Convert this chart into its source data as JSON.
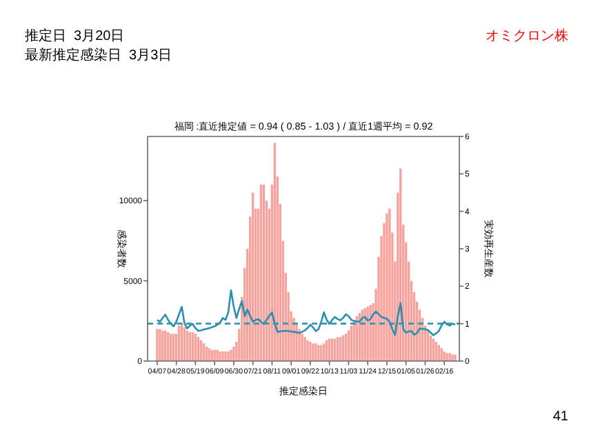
{
  "chart_data": {
    "type": "bar",
    "title": "福岡 :直近推定値 = 0.94 ( 0.85 - 1.03 ) / 直近1週平均 = 0.92",
    "xlabel": "推定感染日",
    "ylabel": "感染者数",
    "y2label": "実効再生産数",
    "annotations": [
      "推定日  3月20日",
      "最新推定感染日  3月3日",
      "オミクロン株",
      "41"
    ],
    "categories": [
      "04/07",
      null,
      null,
      null,
      null,
      null,
      null,
      "04/28",
      null,
      null,
      null,
      null,
      null,
      null,
      "05/19",
      null,
      null,
      null,
      null,
      null,
      null,
      "06/09",
      null,
      null,
      null,
      null,
      null,
      null,
      "06/30",
      null,
      null,
      null,
      null,
      null,
      null,
      "07/21",
      null,
      null,
      null,
      null,
      null,
      null,
      "08/11",
      null,
      null,
      null,
      null,
      null,
      null,
      "09/01",
      null,
      null,
      null,
      null,
      null,
      null,
      "09/22",
      null,
      null,
      null,
      null,
      null,
      null,
      "10/13",
      null,
      null,
      null,
      null,
      null,
      null,
      "11/03",
      null,
      null,
      null,
      null,
      null,
      null,
      "11/24",
      null,
      null,
      null,
      null,
      null,
      null,
      "12/15",
      null,
      null,
      null,
      null,
      null,
      null,
      "01/05",
      null,
      null,
      null,
      null,
      null,
      null,
      "01/26",
      null,
      null,
      null,
      null,
      null,
      null,
      "02/16",
      null,
      null,
      null,
      null
    ],
    "ylim": [
      0,
      14000
    ],
    "yticks": [
      0,
      5000,
      10000
    ],
    "y2lim": [
      0,
      6
    ],
    "y2ticks": [
      0,
      1,
      2,
      3,
      4,
      5,
      6
    ],
    "ref_lines": [
      {
        "axis": "y2",
        "value": 1,
        "color": "#2a9bb5",
        "line_style": "dashed"
      }
    ],
    "series": [
      {
        "color": "#f8a29d",
        "values": [
          2000,
          2000,
          1900,
          1900,
          1800,
          1700,
          1700,
          1700,
          2200,
          2400,
          2100,
          1900,
          1800,
          1800,
          1700,
          1500,
          1300,
          1100,
          900,
          800,
          700,
          700,
          700,
          600,
          600,
          600,
          600,
          700,
          900,
          1200,
          2000,
          4000,
          5800,
          7000,
          9000,
          10500,
          9500,
          9500,
          11000,
          11000,
          10000,
          9500,
          11000,
          13600,
          11500,
          9800,
          7500,
          5500,
          4300,
          3100,
          2700,
          2300,
          2000,
          1700,
          1500,
          1300,
          1200,
          1100,
          1100,
          1000,
          1000,
          1100,
          1300,
          1400,
          1400,
          1400,
          1500,
          1500,
          1600,
          1700,
          1900,
          2200,
          2500,
          2800,
          3000,
          3200,
          3300,
          3400,
          3500,
          3600,
          4500,
          6500,
          7800,
          8600,
          9200,
          9500,
          8000,
          6200,
          10500,
          12000,
          8500,
          7400,
          6200,
          5000,
          4300,
          3700,
          3200,
          2700,
          2200,
          1900,
          1600,
          1400,
          1200,
          1000,
          800,
          600,
          500,
          500,
          400,
          400
        ]
      },
      {
        "type": "line",
        "axis": "y2",
        "color": "#2b8db0",
        "values": [
          1.1,
          1.05,
          1.15,
          1.24,
          1.1,
          1.0,
          0.93,
          1.05,
          1.25,
          1.45,
          1.0,
          0.87,
          0.95,
          0.99,
          0.88,
          0.81,
          0.82,
          0.84,
          0.86,
          0.88,
          0.9,
          0.93,
          0.97,
          1.03,
          1.15,
          1.1,
          1.3,
          1.89,
          1.45,
          1.15,
          1.4,
          1.6,
          1.2,
          1.38,
          1.2,
          1.05,
          1.1,
          1.12,
          1.05,
          0.99,
          1.1,
          1.2,
          1.3,
          1.0,
          0.78,
          0.79,
          0.8,
          0.81,
          0.8,
          0.79,
          0.78,
          0.77,
          0.75,
          0.78,
          0.82,
          0.88,
          0.97,
          0.9,
          0.8,
          0.85,
          1.05,
          1.3,
          1.1,
          0.99,
          1.1,
          1.18,
          1.12,
          1.09,
          1.15,
          1.25,
          1.2,
          1.1,
          1.07,
          1.06,
          1.05,
          1.15,
          1.18,
          1.08,
          1.12,
          1.25,
          1.32,
          1.25,
          1.18,
          1.15,
          1.13,
          1.05,
          0.85,
          0.69,
          1.2,
          1.55,
          0.85,
          0.76,
          0.79,
          0.8,
          0.7,
          0.75,
          0.87,
          0.86,
          0.85,
          0.83,
          0.76,
          0.69,
          0.74,
          0.8,
          0.95,
          1.05,
          0.98,
          0.95,
          1.0,
          0.97
        ]
      }
    ]
  }
}
